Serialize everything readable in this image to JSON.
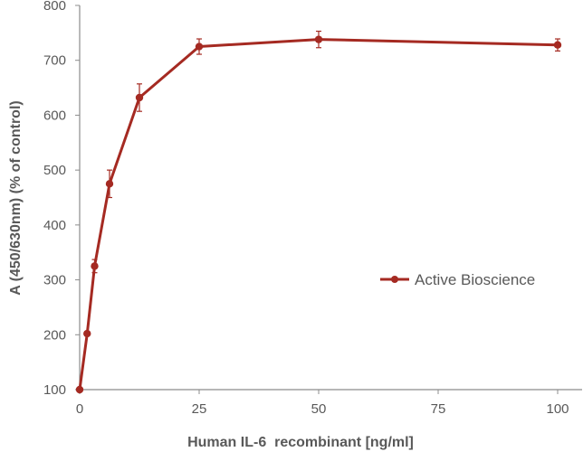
{
  "chart_data": {
    "type": "line",
    "xlabel": "Human IL-6  recombinant [ng/ml]",
    "ylabel": "A (450/630nm) (% of control)",
    "xlim": [
      0,
      100
    ],
    "ylim": [
      100,
      800
    ],
    "x_ticks": [
      0,
      25,
      50,
      75,
      100
    ],
    "y_ticks": [
      100,
      200,
      300,
      400,
      500,
      600,
      700,
      800
    ],
    "grid": false,
    "legend_position": "right",
    "series": [
      {
        "name": "Active Bioscience",
        "color": "#a52a22",
        "x": [
          0,
          1.5625,
          3.125,
          6.25,
          12.5,
          25,
          50,
          100
        ],
        "y": [
          100,
          202,
          325,
          475,
          632,
          725,
          738,
          728
        ],
        "error": [
          0,
          4,
          12,
          25,
          25,
          14,
          15,
          11
        ]
      }
    ]
  }
}
